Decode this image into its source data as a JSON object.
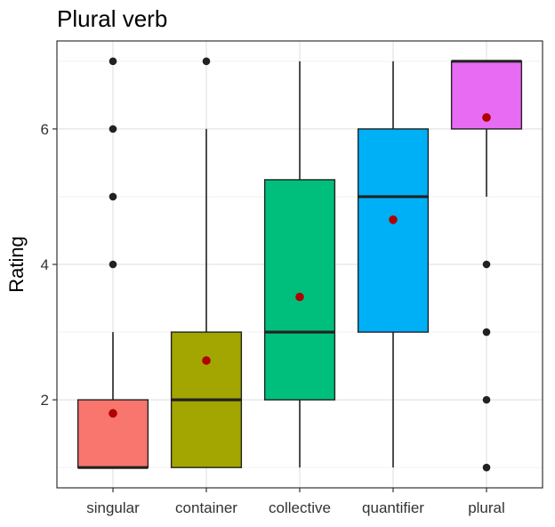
{
  "chart_data": {
    "type": "boxplot",
    "title": "Plural verb",
    "xlabel": "",
    "ylabel": "Rating",
    "ylim": [
      0.7,
      7.3
    ],
    "y_ticks": [
      2,
      4,
      6
    ],
    "grid": true,
    "legend": "none",
    "categories": [
      "singular",
      "container",
      "collective",
      "quantifier",
      "plural"
    ],
    "boxes": [
      {
        "category": "singular",
        "color": "#F8766D",
        "min": 1,
        "q1": 1,
        "median": 1,
        "q3": 2,
        "max": 3,
        "mean": 1.8,
        "outliers": [
          4,
          5,
          6,
          7
        ]
      },
      {
        "category": "container",
        "color": "#A3A500",
        "min": 1,
        "q1": 1,
        "median": 2,
        "q3": 3,
        "max": 6,
        "mean": 2.58,
        "outliers": [
          7
        ]
      },
      {
        "category": "collective",
        "color": "#00BF7D",
        "min": 1,
        "q1": 2,
        "median": 3,
        "q3": 5.25,
        "max": 7,
        "mean": 3.52,
        "outliers": []
      },
      {
        "category": "quantifier",
        "color": "#00B0F6",
        "min": 1,
        "q1": 3,
        "median": 5,
        "q3": 6,
        "max": 7,
        "mean": 4.66,
        "outliers": []
      },
      {
        "category": "plural",
        "color": "#E76BF3",
        "min": 5,
        "q1": 6,
        "median": 7,
        "q3": 7,
        "max": 7,
        "mean": 6.17,
        "outliers": [
          1,
          2,
          3,
          4
        ]
      }
    ],
    "mean_color": "#B00000",
    "outlier_color": "#222222"
  }
}
